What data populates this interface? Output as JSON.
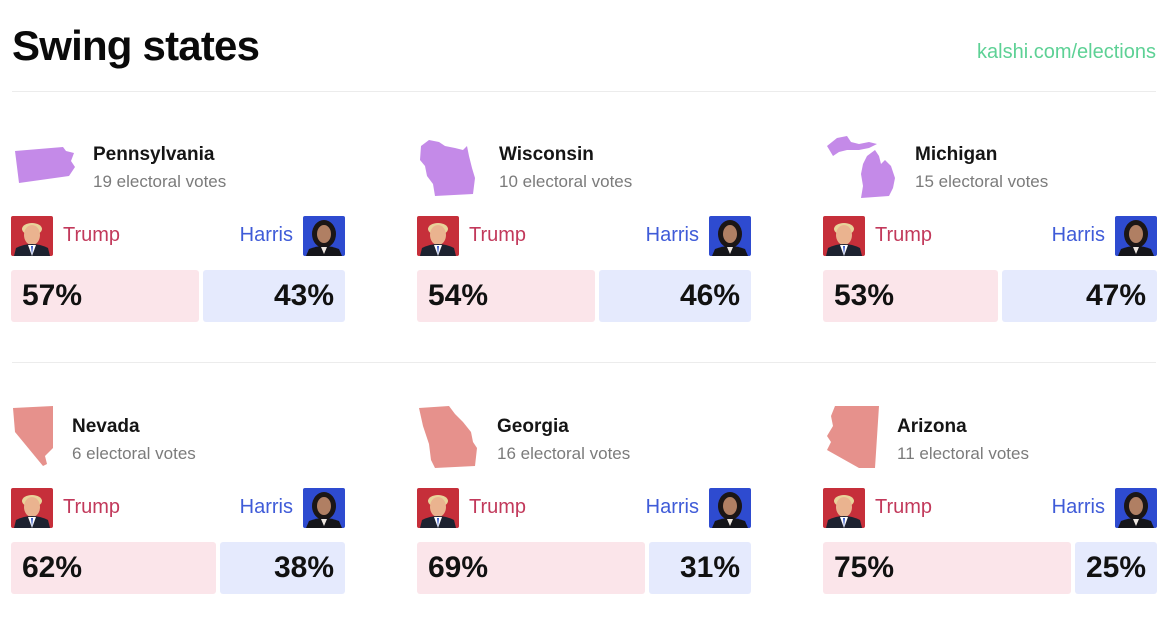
{
  "header": {
    "title": "Swing states",
    "link": "kalshi.com/elections"
  },
  "colors": {
    "trump_text": "#c2395b",
    "harris_text": "#3f5bd8",
    "trump_bar": "#fbe5ea",
    "harris_bar": "#e5eafd",
    "link": "#5dd195",
    "purple_state": "#c48ae8",
    "red_state": "#e6918c"
  },
  "candidates": {
    "trump": "Trump",
    "harris": "Harris"
  },
  "states": [
    {
      "name": "Pennsylvania",
      "votes": "19 electoral votes",
      "trump_pct": "57%",
      "harris_pct": "43%",
      "trump_share": 57,
      "state_color": "purple"
    },
    {
      "name": "Wisconsin",
      "votes": "10 electoral votes",
      "trump_pct": "54%",
      "harris_pct": "46%",
      "trump_share": 54,
      "state_color": "purple"
    },
    {
      "name": "Michigan",
      "votes": "15 electoral votes",
      "trump_pct": "53%",
      "harris_pct": "47%",
      "trump_share": 53,
      "state_color": "purple"
    },
    {
      "name": "Nevada",
      "votes": "6 electoral votes",
      "trump_pct": "62%",
      "harris_pct": "38%",
      "trump_share": 62,
      "state_color": "red"
    },
    {
      "name": "Georgia",
      "votes": "16 electoral votes",
      "trump_pct": "69%",
      "harris_pct": "31%",
      "trump_share": 69,
      "state_color": "red"
    },
    {
      "name": "Arizona",
      "votes": "11 electoral votes",
      "trump_pct": "75%",
      "harris_pct": "25%",
      "trump_share": 75,
      "state_color": "red"
    }
  ]
}
